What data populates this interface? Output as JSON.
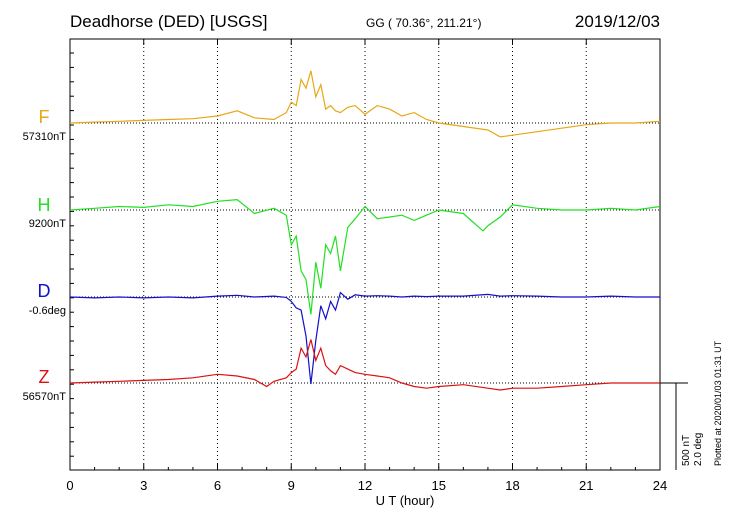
{
  "header": {
    "station": "Deadhorse (DED)  [USGS]",
    "coords": "GG ( 70.36°, 211.21°)",
    "date": "2019/12/03"
  },
  "components": [
    {
      "key": "F",
      "label": "F",
      "baseline": "57310nT",
      "color": "#e6a817"
    },
    {
      "key": "H",
      "label": "H",
      "baseline": "9200nT",
      "color": "#22e022"
    },
    {
      "key": "D",
      "label": "D",
      "baseline": "-0.6deg",
      "color": "#1111cc"
    },
    {
      "key": "Z",
      "label": "Z",
      "baseline": "56570nT",
      "color": "#dd1111"
    }
  ],
  "scale_bar": {
    "line1": "500 nT",
    "line2": "2.0 deg"
  },
  "plotted_note": "Plotted at 2020/01/03 01:31  UT",
  "chart_data": {
    "type": "line",
    "title": "Deadhorse (DED)  [USGS]",
    "xlabel": "U T (hour)",
    "xlim": [
      0,
      24
    ],
    "xticks": [
      0,
      3,
      6,
      9,
      12,
      15,
      18,
      21,
      24
    ],
    "xtick_labels": [
      "0",
      "3",
      "6",
      "9",
      "12",
      "15",
      "18",
      "21",
      "24"
    ],
    "grid": "vertical dotted at 3-hour intervals",
    "scale": {
      "nT_per_bar": 500,
      "deg_per_bar": 2.0
    },
    "series": [
      {
        "name": "F",
        "unit": "nT",
        "baseline": 57310,
        "x": [
          0,
          1,
          2,
          3,
          4,
          5,
          6,
          6.8,
          7.5,
          8.3,
          8.8,
          9.0,
          9.2,
          9.4,
          9.6,
          9.8,
          10.0,
          10.2,
          10.4,
          10.6,
          10.8,
          11.0,
          11.3,
          11.6,
          12.0,
          12.5,
          13.0,
          13.5,
          14.0,
          14.5,
          15.0,
          16.0,
          17.0,
          17.5,
          18.0,
          19.0,
          20.0,
          21.0,
          22.0,
          23.0,
          24.0
        ],
        "y": [
          0,
          5,
          10,
          15,
          20,
          25,
          40,
          70,
          30,
          20,
          60,
          120,
          100,
          250,
          200,
          300,
          150,
          220,
          80,
          100,
          70,
          60,
          90,
          100,
          50,
          100,
          80,
          40,
          60,
          20,
          0,
          -20,
          -40,
          -80,
          -70,
          -50,
          -30,
          -10,
          0,
          0,
          10
        ]
      },
      {
        "name": "H",
        "unit": "nT",
        "baseline": 9200,
        "x": [
          0,
          1,
          2,
          3,
          4,
          5,
          6,
          6.8,
          7.5,
          8.3,
          8.8,
          9.0,
          9.2,
          9.4,
          9.6,
          9.8,
          10.0,
          10.2,
          10.4,
          10.6,
          10.8,
          11.0,
          11.3,
          11.6,
          12.0,
          12.5,
          13.0,
          13.5,
          14.0,
          14.5,
          15.0,
          16.0,
          16.8,
          17.0,
          17.5,
          18.0,
          19.0,
          20.0,
          21.0,
          22.0,
          23.0,
          24.0
        ],
        "y": [
          0,
          10,
          20,
          15,
          30,
          20,
          50,
          60,
          -20,
          10,
          -30,
          -200,
          -150,
          -350,
          -400,
          -600,
          -300,
          -450,
          -200,
          -250,
          -150,
          -350,
          -100,
          -50,
          20,
          -50,
          -40,
          -30,
          -60,
          -30,
          0,
          -20,
          -120,
          -90,
          -40,
          30,
          10,
          0,
          0,
          10,
          0,
          20
        ]
      },
      {
        "name": "D",
        "unit": "deg",
        "baseline": -0.6,
        "x": [
          0,
          1,
          2,
          3,
          4,
          5,
          6,
          6.8,
          7.5,
          8.3,
          8.8,
          9.0,
          9.2,
          9.4,
          9.6,
          9.8,
          10.0,
          10.2,
          10.4,
          10.6,
          10.8,
          11.0,
          11.3,
          11.6,
          12.0,
          12.5,
          13.0,
          13.5,
          14.0,
          14.5,
          15.0,
          16.0,
          17.0,
          17.5,
          18.0,
          19.0,
          20.0,
          21.0,
          22.0,
          23.0,
          24.0
        ],
        "y": [
          0,
          -0.02,
          0,
          -0.02,
          0,
          -0.02,
          0.02,
          0.04,
          0,
          0.02,
          -0.01,
          -0.1,
          -0.25,
          -0.3,
          -0.9,
          -2.0,
          -1.0,
          -0.2,
          -0.5,
          -0.1,
          -0.3,
          0.1,
          -0.05,
          0.05,
          0.02,
          0.03,
          0.02,
          0,
          0.02,
          0.01,
          0.02,
          0.02,
          0.06,
          0.02,
          0.03,
          0.02,
          0,
          0,
          0.02,
          0,
          0
        ]
      },
      {
        "name": "Z",
        "unit": "nT",
        "baseline": 56570,
        "x": [
          0,
          1,
          2,
          3,
          4,
          5,
          6,
          6.8,
          7.5,
          8.0,
          8.3,
          8.8,
          9.0,
          9.2,
          9.4,
          9.6,
          9.8,
          10.0,
          10.2,
          10.4,
          10.6,
          10.8,
          11.0,
          11.3,
          11.6,
          12.0,
          12.5,
          13.0,
          13.5,
          14.0,
          14.5,
          15.0,
          16.0,
          17.0,
          17.5,
          18.0,
          19.0,
          20.0,
          21.0,
          22.0,
          23.0,
          24.0
        ],
        "y": [
          0,
          5,
          10,
          15,
          20,
          30,
          50,
          40,
          20,
          -20,
          10,
          30,
          60,
          80,
          200,
          150,
          250,
          130,
          200,
          100,
          70,
          50,
          100,
          80,
          60,
          50,
          40,
          30,
          0,
          -20,
          -30,
          -20,
          -10,
          -30,
          -40,
          -30,
          -30,
          -20,
          -10,
          0,
          0,
          0
        ]
      }
    ]
  }
}
